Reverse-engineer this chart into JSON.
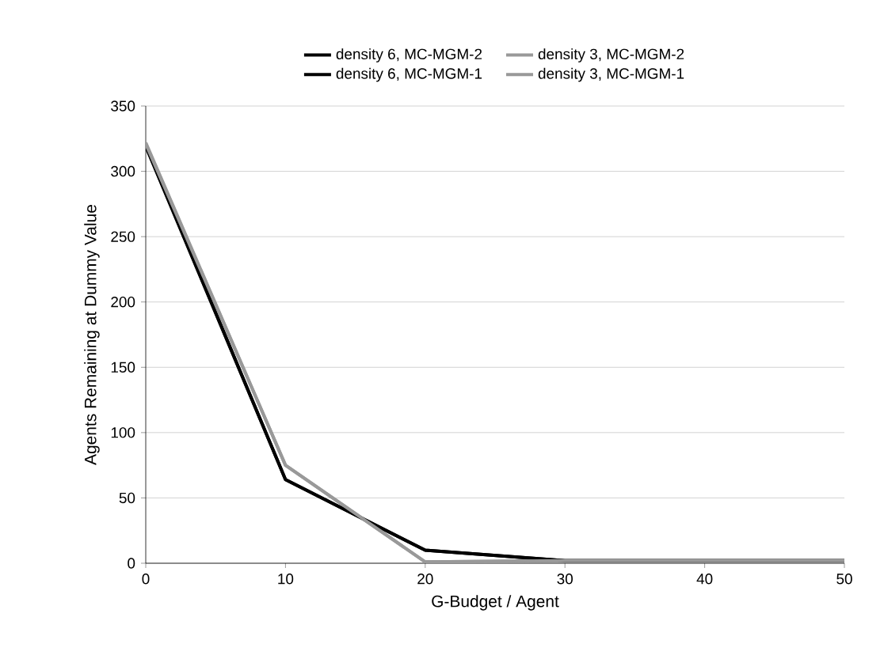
{
  "chart_data": {
    "type": "line",
    "xlabel": "G-Budget / Agent",
    "ylabel": "Agents Remaining at Dummy Value",
    "x": [
      0,
      10,
      20,
      30,
      40,
      50
    ],
    "series": [
      {
        "name": "density 6, MC-MGM-2",
        "color": "#000000",
        "values": [
          320,
          64,
          10,
          2,
          2,
          2
        ]
      },
      {
        "name": "density 3, MC-MGM-2",
        "color": "#999999",
        "values": [
          322,
          75,
          1,
          2,
          2,
          2
        ]
      },
      {
        "name": "density 6, MC-MGM-1",
        "color": "#000000",
        "values": [
          319,
          64,
          10,
          2,
          2,
          2
        ]
      },
      {
        "name": "density 3, MC-MGM-1",
        "color": "#999999",
        "values": [
          321,
          75,
          1,
          2,
          2,
          2
        ]
      }
    ],
    "xlim": [
      0,
      50
    ],
    "ylim": [
      0,
      350
    ],
    "xticks": [
      0,
      10,
      20,
      30,
      40,
      50
    ],
    "yticks": [
      0,
      50,
      100,
      150,
      200,
      250,
      300,
      350
    ],
    "grid": "y",
    "legend": "top",
    "marker": "none",
    "line_style": "solid"
  }
}
